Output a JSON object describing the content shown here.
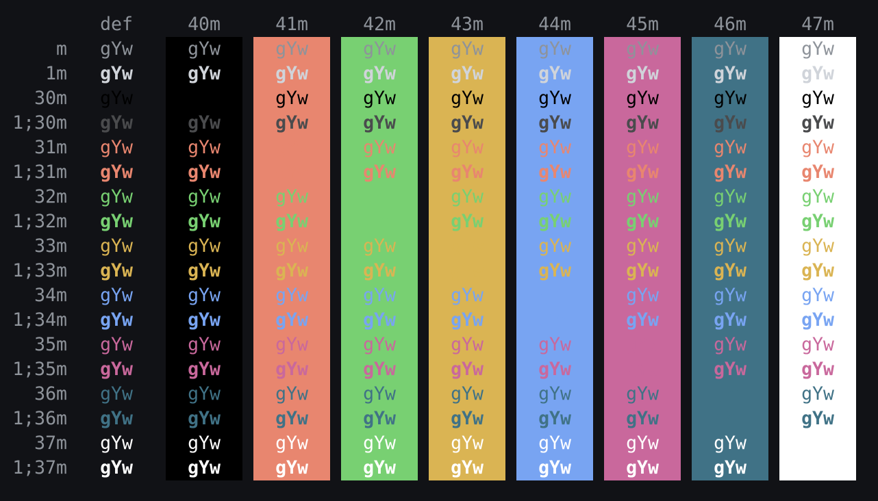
{
  "sample_text": "gYw",
  "default_fg": "#8e939a",
  "background": "#111216",
  "columns": [
    {
      "label": "def",
      "bg": null
    },
    {
      "label": "40m",
      "bg": "#000000"
    },
    {
      "label": "41m",
      "bg": "#e8866f"
    },
    {
      "label": "42m",
      "bg": "#78d072"
    },
    {
      "label": "43m",
      "bg": "#dab453"
    },
    {
      "label": "44m",
      "bg": "#78a4f2"
    },
    {
      "label": "45m",
      "bg": "#c9689c"
    },
    {
      "label": "46m",
      "bg": "#407286"
    },
    {
      "label": "47m",
      "bg": "#ffffff"
    }
  ],
  "rows": [
    {
      "label": "m",
      "fg": "#8e939a",
      "bold": false
    },
    {
      "label": "1m",
      "fg": "#d0d4da",
      "bold": true
    },
    {
      "label": "30m",
      "fg": "#000000",
      "bold": false
    },
    {
      "label": "1;30m",
      "fg": "#4a4b4d",
      "bold": true
    },
    {
      "label": "31m",
      "fg": "#e8866f",
      "bold": false
    },
    {
      "label": "1;31m",
      "fg": "#e8866f",
      "bold": true
    },
    {
      "label": "32m",
      "fg": "#78d072",
      "bold": false
    },
    {
      "label": "1;32m",
      "fg": "#78d072",
      "bold": true
    },
    {
      "label": "33m",
      "fg": "#dab453",
      "bold": false
    },
    {
      "label": "1;33m",
      "fg": "#dab453",
      "bold": true
    },
    {
      "label": "34m",
      "fg": "#78a4f2",
      "bold": false
    },
    {
      "label": "1;34m",
      "fg": "#78a4f2",
      "bold": true
    },
    {
      "label": "35m",
      "fg": "#c9689c",
      "bold": false
    },
    {
      "label": "1;35m",
      "fg": "#c9689c",
      "bold": true
    },
    {
      "label": "36m",
      "fg": "#407286",
      "bold": false
    },
    {
      "label": "1;36m",
      "fg": "#407286",
      "bold": true
    },
    {
      "label": "37m",
      "fg": "#ffffff",
      "bold": false
    },
    {
      "label": "1;37m",
      "fg": "#ffffff",
      "bold": true
    }
  ]
}
